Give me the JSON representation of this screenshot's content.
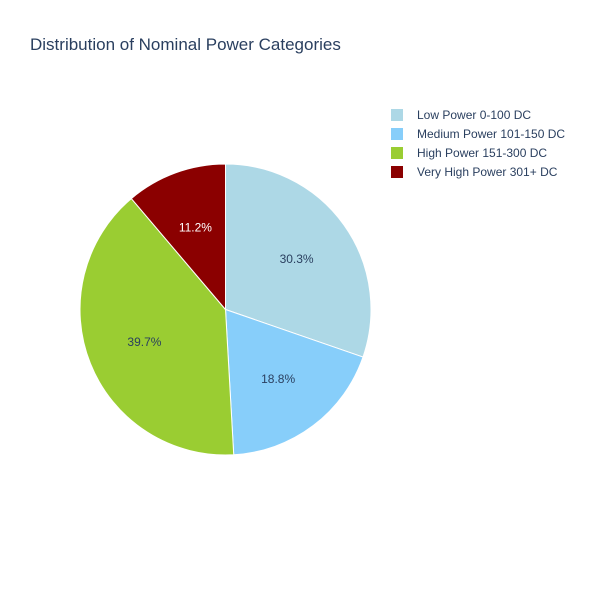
{
  "chart_data": {
    "type": "pie",
    "title": "Distribution of Nominal Power Categories",
    "legend_position": "top-right",
    "direction": "clockwise",
    "start": "top",
    "slices": [
      {
        "label": "Low Power 0-100 DC",
        "value": 30.3,
        "text": "30.3%",
        "color": "#add8e6",
        "text_color": "#2a3f5f"
      },
      {
        "label": "Medium Power 101-150 DC",
        "value": 18.8,
        "text": "18.8%",
        "color": "#87cefa",
        "text_color": "#2a3f5f"
      },
      {
        "label": "High Power 151-300 DC",
        "value": 39.7,
        "text": "39.7%",
        "color": "#9acd32",
        "text_color": "#2a3f5f"
      },
      {
        "label": "Very High Power 301+ DC",
        "value": 11.2,
        "text": "11.2%",
        "color": "#8b0000",
        "text_color": "#ffffff"
      }
    ]
  }
}
